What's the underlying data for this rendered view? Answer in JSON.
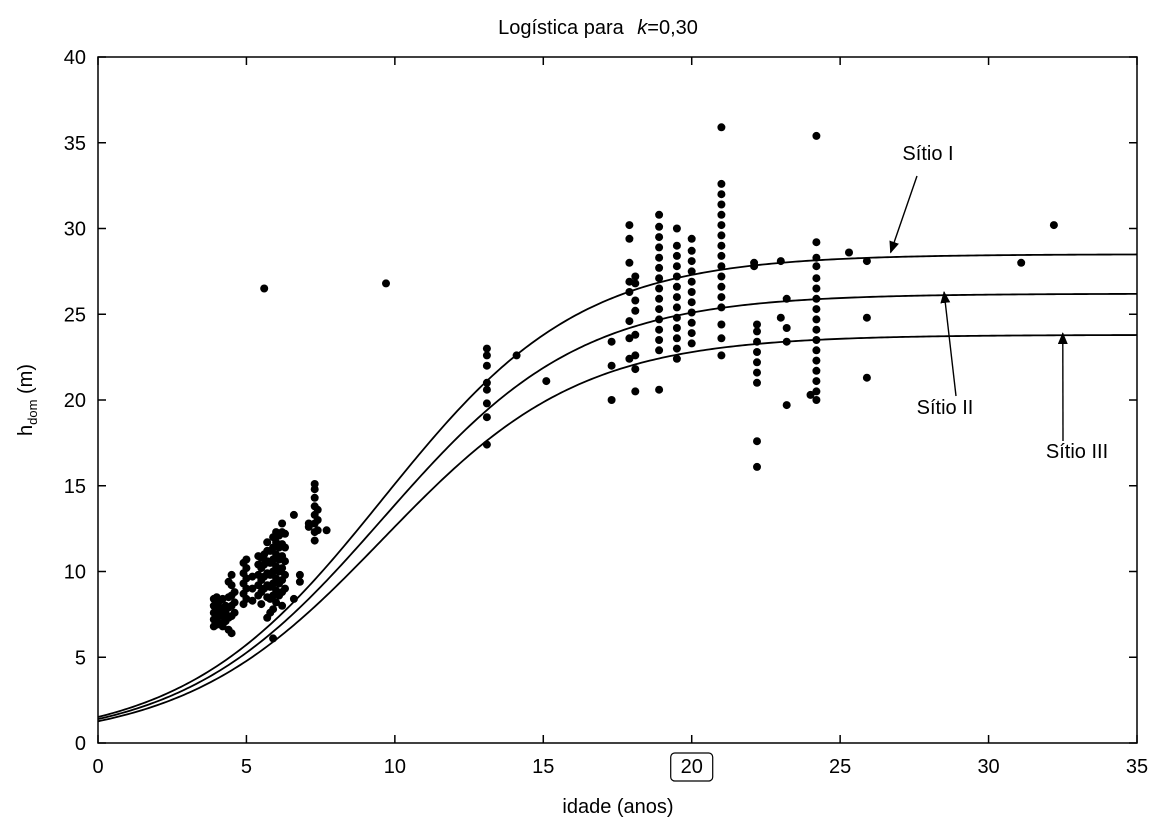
{
  "chart_data": {
    "type": "scatter",
    "title_prefix": "Logística para",
    "title_k": "k",
    "title_suffix": "=0,30",
    "xlabel": "idade (anos)",
    "ylabel_main": "h",
    "ylabel_sub": "dom",
    "ylabel_unit": " (m)",
    "xlim": [
      0,
      35
    ],
    "ylim": [
      0,
      40
    ],
    "xticks": [
      0,
      5,
      10,
      15,
      20,
      25,
      30,
      35
    ],
    "yticks": [
      0,
      5,
      10,
      15,
      20,
      25,
      30,
      35,
      40
    ],
    "highlighted_xtick": 20,
    "grid": false,
    "curves": [
      {
        "name": "Sítio I",
        "asymptote": 28.5,
        "k": 0.3,
        "t0": 9.6
      },
      {
        "name": "Sítio II",
        "asymptote": 26.2,
        "k": 0.3,
        "t0": 9.6
      },
      {
        "name": "Sítio III",
        "asymptote": 23.8,
        "k": 0.3,
        "t0": 9.6
      }
    ],
    "annotations": [
      {
        "text": "Sítio I",
        "arrow_to": [
          26.7,
          28.6
        ]
      },
      {
        "text": "Sítio II",
        "arrow_to": [
          28.5,
          26.3
        ]
      },
      {
        "text": "Sítio III",
        "arrow_to": [
          32.5,
          23.9
        ]
      }
    ],
    "points": [
      [
        3.9,
        6.8
      ],
      [
        3.9,
        7.2
      ],
      [
        3.9,
        7.6
      ],
      [
        3.9,
        8.0
      ],
      [
        3.9,
        8.4
      ],
      [
        4.0,
        6.9
      ],
      [
        4.0,
        7.3
      ],
      [
        4.0,
        7.7
      ],
      [
        4.0,
        8.1
      ],
      [
        4.0,
        8.5
      ],
      [
        4.1,
        7.0
      ],
      [
        4.1,
        7.5
      ],
      [
        4.1,
        7.9
      ],
      [
        4.1,
        8.3
      ],
      [
        4.2,
        6.8
      ],
      [
        4.2,
        7.4
      ],
      [
        4.2,
        7.8
      ],
      [
        4.2,
        8.4
      ],
      [
        4.3,
        7.1
      ],
      [
        4.3,
        7.6
      ],
      [
        4.3,
        8.0
      ],
      [
        4.4,
        6.6
      ],
      [
        4.4,
        7.3
      ],
      [
        4.4,
        7.9
      ],
      [
        4.4,
        8.5
      ],
      [
        4.4,
        9.4
      ],
      [
        4.5,
        6.4
      ],
      [
        4.5,
        7.4
      ],
      [
        4.5,
        8.0
      ],
      [
        4.5,
        8.6
      ],
      [
        4.5,
        9.2
      ],
      [
        4.5,
        9.8
      ],
      [
        4.6,
        7.6
      ],
      [
        4.6,
        8.2
      ],
      [
        4.6,
        8.8
      ],
      [
        4.9,
        8.1
      ],
      [
        4.9,
        8.7
      ],
      [
        4.9,
        9.3
      ],
      [
        4.9,
        9.9
      ],
      [
        4.9,
        10.5
      ],
      [
        5.0,
        8.4
      ],
      [
        5.0,
        9.0
      ],
      [
        5.0,
        9.6
      ],
      [
        5.0,
        10.2
      ],
      [
        5.0,
        10.7
      ],
      [
        5.2,
        8.3
      ],
      [
        5.2,
        9.0
      ],
      [
        5.2,
        9.7
      ],
      [
        5.4,
        8.6
      ],
      [
        5.4,
        9.2
      ],
      [
        5.4,
        9.8
      ],
      [
        5.4,
        10.4
      ],
      [
        5.4,
        10.9
      ],
      [
        5.5,
        8.1
      ],
      [
        5.5,
        8.8
      ],
      [
        5.5,
        9.5
      ],
      [
        5.5,
        10.2
      ],
      [
        5.5,
        10.8
      ],
      [
        5.6,
        9.0
      ],
      [
        5.6,
        9.7
      ],
      [
        5.6,
        10.4
      ],
      [
        5.6,
        11.0
      ],
      [
        5.6,
        26.5
      ],
      [
        5.7,
        7.3
      ],
      [
        5.7,
        8.5
      ],
      [
        5.7,
        9.2
      ],
      [
        5.7,
        9.9
      ],
      [
        5.7,
        10.6
      ],
      [
        5.7,
        11.2
      ],
      [
        5.7,
        11.7
      ],
      [
        5.8,
        7.6
      ],
      [
        5.8,
        8.4
      ],
      [
        5.8,
        9.1
      ],
      [
        5.8,
        9.8
      ],
      [
        5.8,
        10.5
      ],
      [
        5.8,
        11.2
      ],
      [
        5.9,
        6.1
      ],
      [
        5.9,
        7.8
      ],
      [
        5.9,
        8.6
      ],
      [
        5.9,
        9.3
      ],
      [
        5.9,
        10.0
      ],
      [
        5.9,
        10.7
      ],
      [
        5.9,
        11.4
      ],
      [
        5.9,
        12.0
      ],
      [
        6.0,
        8.2
      ],
      [
        6.0,
        8.9
      ],
      [
        6.0,
        9.6
      ],
      [
        6.0,
        10.3
      ],
      [
        6.0,
        11.0
      ],
      [
        6.0,
        11.7
      ],
      [
        6.0,
        12.3
      ],
      [
        6.1,
        8.6
      ],
      [
        6.1,
        9.3
      ],
      [
        6.1,
        10.0
      ],
      [
        6.1,
        10.7
      ],
      [
        6.1,
        11.4
      ],
      [
        6.1,
        12.1
      ],
      [
        6.2,
        8.0
      ],
      [
        6.2,
        8.8
      ],
      [
        6.2,
        9.5
      ],
      [
        6.2,
        10.2
      ],
      [
        6.2,
        10.9
      ],
      [
        6.2,
        11.6
      ],
      [
        6.2,
        12.3
      ],
      [
        6.2,
        12.8
      ],
      [
        6.3,
        9.0
      ],
      [
        6.3,
        9.8
      ],
      [
        6.3,
        10.6
      ],
      [
        6.3,
        11.4
      ],
      [
        6.3,
        12.2
      ],
      [
        6.6,
        8.4
      ],
      [
        6.6,
        13.3
      ],
      [
        6.8,
        9.4
      ],
      [
        6.8,
        9.8
      ],
      [
        7.1,
        12.8
      ],
      [
        7.1,
        12.6
      ],
      [
        7.3,
        11.8
      ],
      [
        7.3,
        12.3
      ],
      [
        7.3,
        12.8
      ],
      [
        7.3,
        13.3
      ],
      [
        7.3,
        13.8
      ],
      [
        7.3,
        14.3
      ],
      [
        7.3,
        14.8
      ],
      [
        7.3,
        15.1
      ],
      [
        7.4,
        12.4
      ],
      [
        7.4,
        13.0
      ],
      [
        7.4,
        13.6
      ],
      [
        7.7,
        12.4
      ],
      [
        9.7,
        26.8
      ],
      [
        13.1,
        17.4
      ],
      [
        13.1,
        19.0
      ],
      [
        13.1,
        19.8
      ],
      [
        13.1,
        20.6
      ],
      [
        13.1,
        21.0
      ],
      [
        13.1,
        22.0
      ],
      [
        13.1,
        22.6
      ],
      [
        13.1,
        23.0
      ],
      [
        14.1,
        22.6
      ],
      [
        15.1,
        21.1
      ],
      [
        17.3,
        20.0
      ],
      [
        17.3,
        22.0
      ],
      [
        17.3,
        23.4
      ],
      [
        17.9,
        22.4
      ],
      [
        17.9,
        23.6
      ],
      [
        17.9,
        24.6
      ],
      [
        17.9,
        26.3
      ],
      [
        17.9,
        26.9
      ],
      [
        17.9,
        28.0
      ],
      [
        17.9,
        29.4
      ],
      [
        17.9,
        30.2
      ],
      [
        18.1,
        20.5
      ],
      [
        18.1,
        21.8
      ],
      [
        18.1,
        22.6
      ],
      [
        18.1,
        23.8
      ],
      [
        18.1,
        25.2
      ],
      [
        18.1,
        25.8
      ],
      [
        18.1,
        26.8
      ],
      [
        18.1,
        27.2
      ],
      [
        18.9,
        20.6
      ],
      [
        18.9,
        22.9
      ],
      [
        18.9,
        23.5
      ],
      [
        18.9,
        24.1
      ],
      [
        18.9,
        24.7
      ],
      [
        18.9,
        25.3
      ],
      [
        18.9,
        25.9
      ],
      [
        18.9,
        26.5
      ],
      [
        18.9,
        27.1
      ],
      [
        18.9,
        27.7
      ],
      [
        18.9,
        28.3
      ],
      [
        18.9,
        28.9
      ],
      [
        18.9,
        29.5
      ],
      [
        18.9,
        30.1
      ],
      [
        18.9,
        30.8
      ],
      [
        19.5,
        22.4
      ],
      [
        19.5,
        23.0
      ],
      [
        19.5,
        23.6
      ],
      [
        19.5,
        24.2
      ],
      [
        19.5,
        24.8
      ],
      [
        19.5,
        25.4
      ],
      [
        19.5,
        26.0
      ],
      [
        19.5,
        26.6
      ],
      [
        19.5,
        27.2
      ],
      [
        19.5,
        27.8
      ],
      [
        19.5,
        28.4
      ],
      [
        19.5,
        29.0
      ],
      [
        19.5,
        30.0
      ],
      [
        20.0,
        23.3
      ],
      [
        20.0,
        23.9
      ],
      [
        20.0,
        24.5
      ],
      [
        20.0,
        25.1
      ],
      [
        20.0,
        25.7
      ],
      [
        20.0,
        26.3
      ],
      [
        20.0,
        26.9
      ],
      [
        20.0,
        27.5
      ],
      [
        20.0,
        28.1
      ],
      [
        20.0,
        28.7
      ],
      [
        20.0,
        29.4
      ],
      [
        21.0,
        22.6
      ],
      [
        21.0,
        23.6
      ],
      [
        21.0,
        24.4
      ],
      [
        21.0,
        25.4
      ],
      [
        21.0,
        26.0
      ],
      [
        21.0,
        26.6
      ],
      [
        21.0,
        27.2
      ],
      [
        21.0,
        27.8
      ],
      [
        21.0,
        28.4
      ],
      [
        21.0,
        29.0
      ],
      [
        21.0,
        29.6
      ],
      [
        21.0,
        30.2
      ],
      [
        21.0,
        30.8
      ],
      [
        21.0,
        31.4
      ],
      [
        21.0,
        32.0
      ],
      [
        21.0,
        32.6
      ],
      [
        21.0,
        35.9
      ],
      [
        22.1,
        27.8
      ],
      [
        22.1,
        28.0
      ],
      [
        22.2,
        16.1
      ],
      [
        22.2,
        17.6
      ],
      [
        22.2,
        21.0
      ],
      [
        22.2,
        21.6
      ],
      [
        22.2,
        22.2
      ],
      [
        22.2,
        22.8
      ],
      [
        22.2,
        23.4
      ],
      [
        22.2,
        24.0
      ],
      [
        22.2,
        24.4
      ],
      [
        23.0,
        24.8
      ],
      [
        23.0,
        28.1
      ],
      [
        23.2,
        19.7
      ],
      [
        23.2,
        23.4
      ],
      [
        23.2,
        24.2
      ],
      [
        23.2,
        25.9
      ],
      [
        24.0,
        20.3
      ],
      [
        24.2,
        20.0
      ],
      [
        24.2,
        20.5
      ],
      [
        24.2,
        21.1
      ],
      [
        24.2,
        21.7
      ],
      [
        24.2,
        22.3
      ],
      [
        24.2,
        22.9
      ],
      [
        24.2,
        23.5
      ],
      [
        24.2,
        24.1
      ],
      [
        24.2,
        24.7
      ],
      [
        24.2,
        25.3
      ],
      [
        24.2,
        25.9
      ],
      [
        24.2,
        26.5
      ],
      [
        24.2,
        27.1
      ],
      [
        24.2,
        27.8
      ],
      [
        24.2,
        28.3
      ],
      [
        24.2,
        29.2
      ],
      [
        24.2,
        35.4
      ],
      [
        25.3,
        28.6
      ],
      [
        25.9,
        21.3
      ],
      [
        25.9,
        24.8
      ],
      [
        25.9,
        28.1
      ],
      [
        31.1,
        28.0
      ],
      [
        32.2,
        30.2
      ]
    ]
  }
}
